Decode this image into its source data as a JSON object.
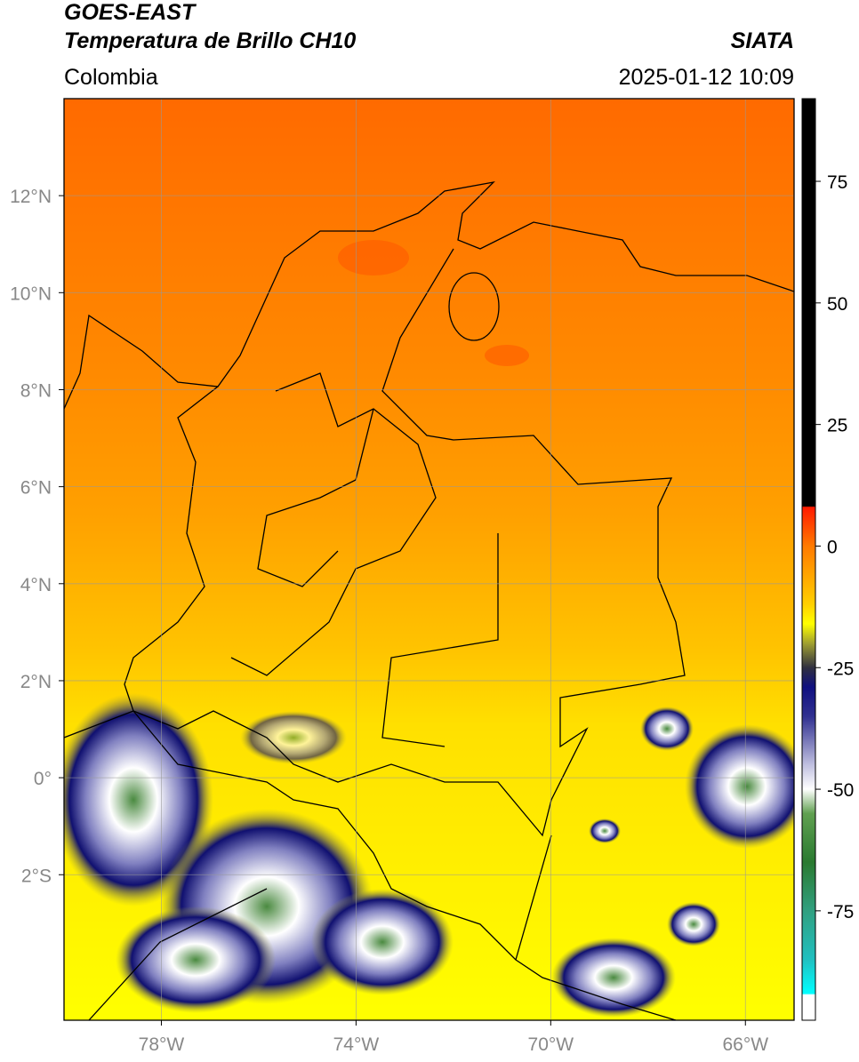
{
  "header": {
    "title_line1": "GOES-EAST",
    "title_line2": "Temperatura de Brillo CH10",
    "source": "SIATA",
    "region": "Colombia",
    "datetime": "2025-01-12 10:09"
  },
  "map": {
    "xlim": [
      -80,
      -65
    ],
    "ylim": [
      -5,
      14
    ],
    "xticks": [
      {
        "value": -78,
        "label": "78°W"
      },
      {
        "value": -74,
        "label": "74°W"
      },
      {
        "value": -70,
        "label": "70°W"
      },
      {
        "value": -66,
        "label": "66°W"
      }
    ],
    "yticks": [
      {
        "value": 12,
        "label": "12°N"
      },
      {
        "value": 10,
        "label": "10°N"
      },
      {
        "value": 8,
        "label": "8°N"
      },
      {
        "value": 6,
        "label": "6°N"
      },
      {
        "value": 4,
        "label": "4°N"
      },
      {
        "value": 2,
        "label": "2°N"
      },
      {
        "value": 0,
        "label": "0°"
      },
      {
        "value": -2,
        "label": "2°S"
      }
    ],
    "grid": true
  },
  "colorbar": {
    "lim": [
      -97.5,
      92
    ],
    "ticks": [
      75,
      50,
      25,
      0,
      -25,
      -50,
      -75
    ],
    "colors": [
      {
        "value": 92,
        "color": "#000000"
      },
      {
        "value": 8.2,
        "color": "#000000"
      },
      {
        "value": 8,
        "color": "#ff1a00"
      },
      {
        "value": 0,
        "color": "#ff7a00"
      },
      {
        "value": -12,
        "color": "#ffd000"
      },
      {
        "value": -16,
        "color": "#ffff00"
      },
      {
        "value": -20,
        "color": "#a0a030"
      },
      {
        "value": -25,
        "color": "#303040"
      },
      {
        "value": -29,
        "color": "#101080"
      },
      {
        "value": -35,
        "color": "#303090"
      },
      {
        "value": -45,
        "color": "#c0c0e0"
      },
      {
        "value": -50,
        "color": "#ffffff"
      },
      {
        "value": -55,
        "color": "#60a050"
      },
      {
        "value": -65,
        "color": "#2a7a30"
      },
      {
        "value": -75,
        "color": "#30a080"
      },
      {
        "value": -85,
        "color": "#20c0c0"
      },
      {
        "value": -92,
        "color": "#00ffff"
      },
      {
        "value": -92.3,
        "color": "#ffffff"
      },
      {
        "value": -97.5,
        "color": "#ffffff"
      }
    ]
  }
}
